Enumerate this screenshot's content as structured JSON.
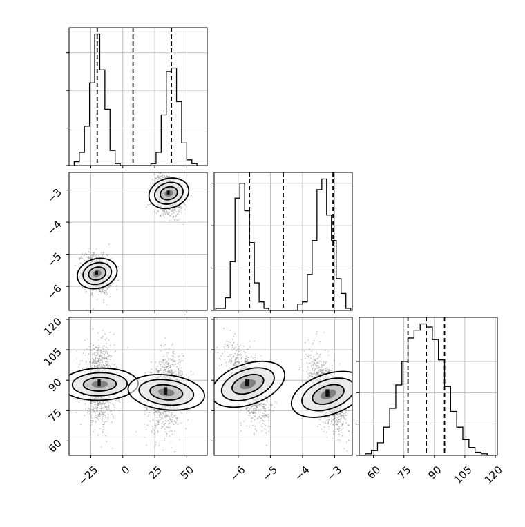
{
  "chart_data": {
    "type": "corner",
    "grid": true,
    "parameters": [
      {
        "range": [
          -42,
          66
        ],
        "ticks": [
          -25,
          0,
          25,
          50
        ],
        "tick_labels": [
          "−25",
          "0",
          "25",
          "50"
        ]
      },
      {
        "range": [
          -6.75,
          -2.45
        ],
        "ticks": [
          -6,
          -5,
          -4,
          -3
        ],
        "tick_labels": [
          "−6",
          "−5",
          "−4",
          "−3"
        ]
      },
      {
        "range": [
          53,
          121
        ],
        "ticks": [
          60,
          75,
          90,
          105,
          120
        ],
        "tick_labels": [
          "60",
          "75",
          "90",
          "105",
          "120"
        ]
      }
    ],
    "histograms": [
      {
        "param": 0,
        "bin_edges": [
          -38,
          -34,
          -30,
          -26,
          -22,
          -18,
          -14,
          -10,
          -6,
          -2,
          2,
          6,
          10,
          14,
          18,
          22,
          26,
          30,
          34,
          38,
          42,
          46,
          50,
          54,
          58
        ],
        "counts": [
          2,
          7,
          21,
          44,
          70,
          51,
          30,
          8,
          1,
          0,
          0,
          0,
          0,
          0,
          0,
          1,
          7,
          27,
          50,
          52,
          34,
          12,
          3,
          1
        ],
        "quantiles": [
          -20,
          8,
          38
        ],
        "y_ticks": [
          0,
          20,
          40,
          60
        ]
      },
      {
        "param": 1,
        "bin_edges": [
          -6.7,
          -6.55,
          -6.4,
          -6.25,
          -6.1,
          -5.95,
          -5.8,
          -5.65,
          -5.5,
          -5.35,
          -5.2,
          -5.05,
          -4.9,
          -4.75,
          -4.6,
          -4.45,
          -4.3,
          -4.15,
          -4.0,
          -3.85,
          -3.7,
          -3.55,
          -3.4,
          -3.25,
          -3.1,
          -2.95,
          -2.8,
          -2.65,
          -2.5
        ],
        "counts": [
          1,
          1,
          6,
          23,
          53,
          60,
          47,
          32,
          13,
          4,
          1,
          0,
          0,
          0,
          0,
          0,
          0,
          3,
          4,
          17,
          33,
          57,
          62,
          45,
          33,
          15,
          8,
          1
        ],
        "quantiles": [
          -5.65,
          -4.6,
          -3.05
        ],
        "y_ticks": [
          0,
          20,
          40,
          60
        ]
      },
      {
        "param": 2,
        "bin_edges": [
          53,
          56,
          59,
          62,
          65,
          68,
          71,
          74,
          77,
          80,
          83,
          86,
          89,
          92,
          95,
          98,
          101,
          104,
          107,
          110,
          113,
          116,
          119
        ],
        "counts": [
          0,
          1,
          3,
          8,
          18,
          30,
          45,
          60,
          75,
          80,
          84,
          82,
          74,
          61,
          44,
          28,
          18,
          10,
          5,
          2,
          1,
          0
        ],
        "quantiles": [
          77,
          86,
          95
        ],
        "y_ticks": [
          0,
          20,
          40,
          60
        ]
      }
    ],
    "joint": [
      {
        "x_param": 0,
        "y_param": 1,
        "clusters": [
          {
            "mean": [
              -20,
              -5.6
            ],
            "sd": [
              5.5,
              0.3
            ],
            "corr": -0.2,
            "n": 1100
          },
          {
            "mean": [
              36,
              -3.1
            ],
            "sd": [
              5.5,
              0.3
            ],
            "corr": -0.2,
            "n": 1100
          }
        ]
      },
      {
        "x_param": 0,
        "y_param": 2,
        "clusters": [
          {
            "mean": [
              -18,
              88
            ],
            "sd": [
              6,
              9
            ],
            "corr": -0.05,
            "n": 1100
          },
          {
            "mean": [
              34,
              84
            ],
            "sd": [
              6.5,
              9
            ],
            "corr": 0.2,
            "n": 1100
          }
        ]
      },
      {
        "x_param": 1,
        "y_param": 2,
        "clusters": [
          {
            "mean": [
              -5.7,
              88
            ],
            "sd": [
              0.3,
              9
            ],
            "corr": -0.55,
            "n": 1100
          },
          {
            "mean": [
              -3.2,
              83
            ],
            "sd": [
              0.3,
              9
            ],
            "corr": -0.55,
            "n": 1100
          }
        ]
      }
    ]
  }
}
